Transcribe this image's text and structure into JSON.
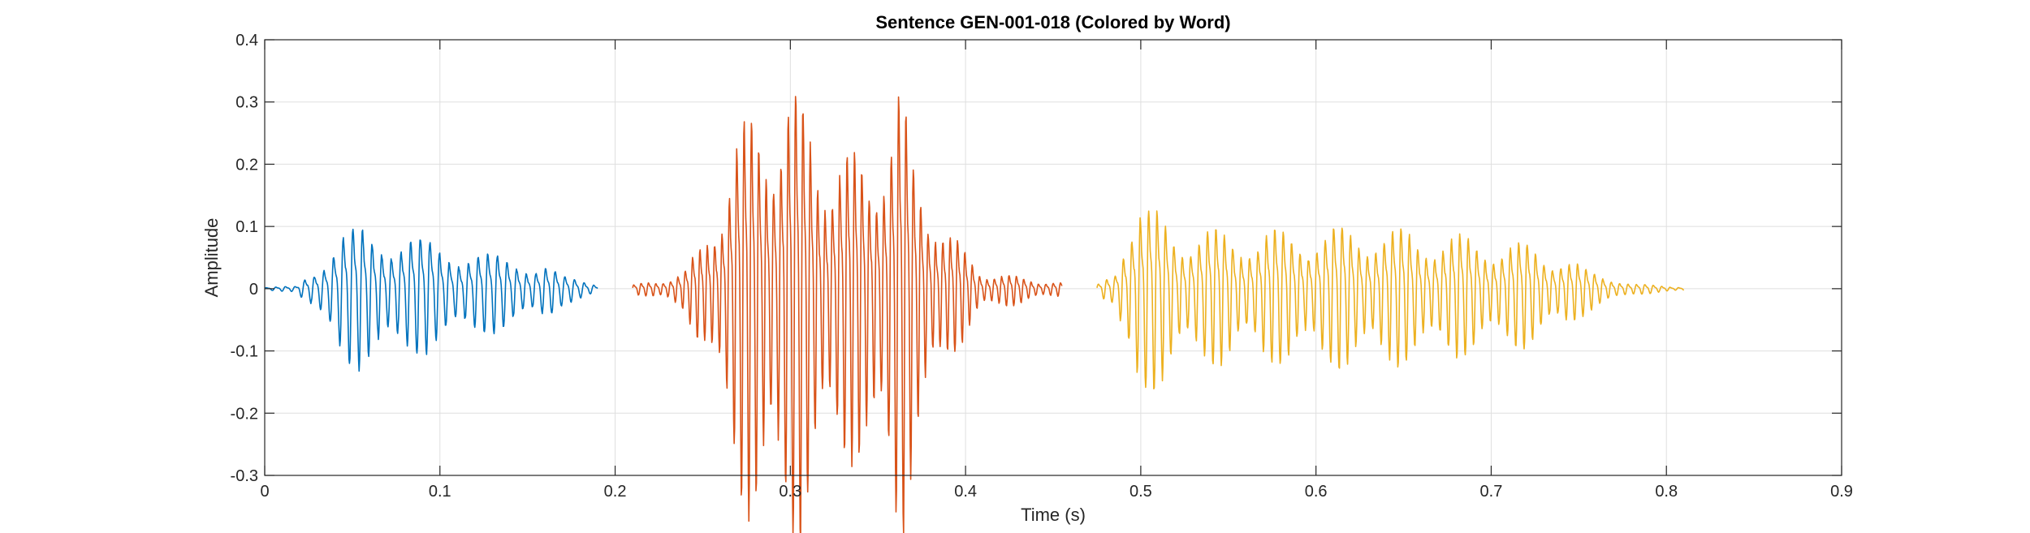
{
  "chart_data": {
    "type": "line",
    "title": "Sentence GEN-001-018 (Colored by Word)",
    "xlabel": "Time (s)",
    "ylabel": "Amplitude",
    "xlim": [
      0,
      0.9
    ],
    "ylim": [
      -0.3,
      0.4
    ],
    "xticks": [
      0,
      0.1,
      0.2,
      0.3,
      0.4,
      0.5,
      0.6,
      0.7,
      0.8,
      0.9
    ],
    "xtick_labels": [
      "0",
      "0.1",
      "0.2",
      "0.3",
      "0.4",
      "0.5",
      "0.6",
      "0.7",
      "0.8",
      "0.9"
    ],
    "yticks": [
      -0.3,
      -0.2,
      -0.1,
      0,
      0.1,
      0.2,
      0.3,
      0.4
    ],
    "ytick_labels": [
      "-0.3",
      "-0.2",
      "-0.1",
      "0",
      "0.1",
      "0.2",
      "0.3",
      "0.4"
    ],
    "grid": true,
    "legend": false,
    "series": [
      {
        "color": "#0072BD",
        "t_start": 0.0,
        "t_end": 0.19,
        "period": 0.0055,
        "envelope": [
          [
            0.0,
            0.002
          ],
          [
            0.018,
            0.004
          ],
          [
            0.025,
            0.03
          ],
          [
            0.035,
            0.06
          ],
          [
            0.045,
            0.09
          ],
          [
            0.055,
            0.105
          ],
          [
            0.065,
            0.105
          ],
          [
            0.08,
            0.09
          ],
          [
            0.1,
            0.075
          ],
          [
            0.115,
            0.07
          ],
          [
            0.13,
            0.055
          ],
          [
            0.145,
            0.05
          ],
          [
            0.16,
            0.045
          ],
          [
            0.17,
            0.02
          ],
          [
            0.19,
            0.01
          ]
        ]
      },
      {
        "color": "#D95319",
        "t_start": 0.21,
        "t_end": 0.455,
        "period": 0.0042,
        "envelope": [
          [
            0.21,
            0.006
          ],
          [
            0.225,
            0.015
          ],
          [
            0.24,
            0.03
          ],
          [
            0.25,
            0.08
          ],
          [
            0.26,
            0.17
          ],
          [
            0.27,
            0.26
          ],
          [
            0.28,
            0.31
          ],
          [
            0.29,
            0.33
          ],
          [
            0.3,
            0.34
          ],
          [
            0.31,
            0.3
          ],
          [
            0.32,
            0.25
          ],
          [
            0.335,
            0.22
          ],
          [
            0.345,
            0.23
          ],
          [
            0.355,
            0.3
          ],
          [
            0.362,
            0.35
          ],
          [
            0.37,
            0.22
          ],
          [
            0.38,
            0.17
          ],
          [
            0.39,
            0.1
          ],
          [
            0.4,
            0.06
          ],
          [
            0.41,
            0.03
          ],
          [
            0.43,
            0.02
          ],
          [
            0.455,
            0.01
          ]
        ]
      },
      {
        "color": "#EDB120",
        "t_start": 0.475,
        "t_end": 0.81,
        "period": 0.0048,
        "envelope": [
          [
            0.475,
            0.006
          ],
          [
            0.485,
            0.03
          ],
          [
            0.49,
            0.1
          ],
          [
            0.497,
            0.15
          ],
          [
            0.51,
            0.125
          ],
          [
            0.53,
            0.1
          ],
          [
            0.56,
            0.095
          ],
          [
            0.6,
            0.1
          ],
          [
            0.63,
            0.105
          ],
          [
            0.66,
            0.095
          ],
          [
            0.69,
            0.085
          ],
          [
            0.72,
            0.075
          ],
          [
            0.74,
            0.06
          ],
          [
            0.755,
            0.03
          ],
          [
            0.77,
            0.02
          ],
          [
            0.78,
            0.008
          ],
          [
            0.81,
            0.003
          ]
        ]
      }
    ]
  }
}
